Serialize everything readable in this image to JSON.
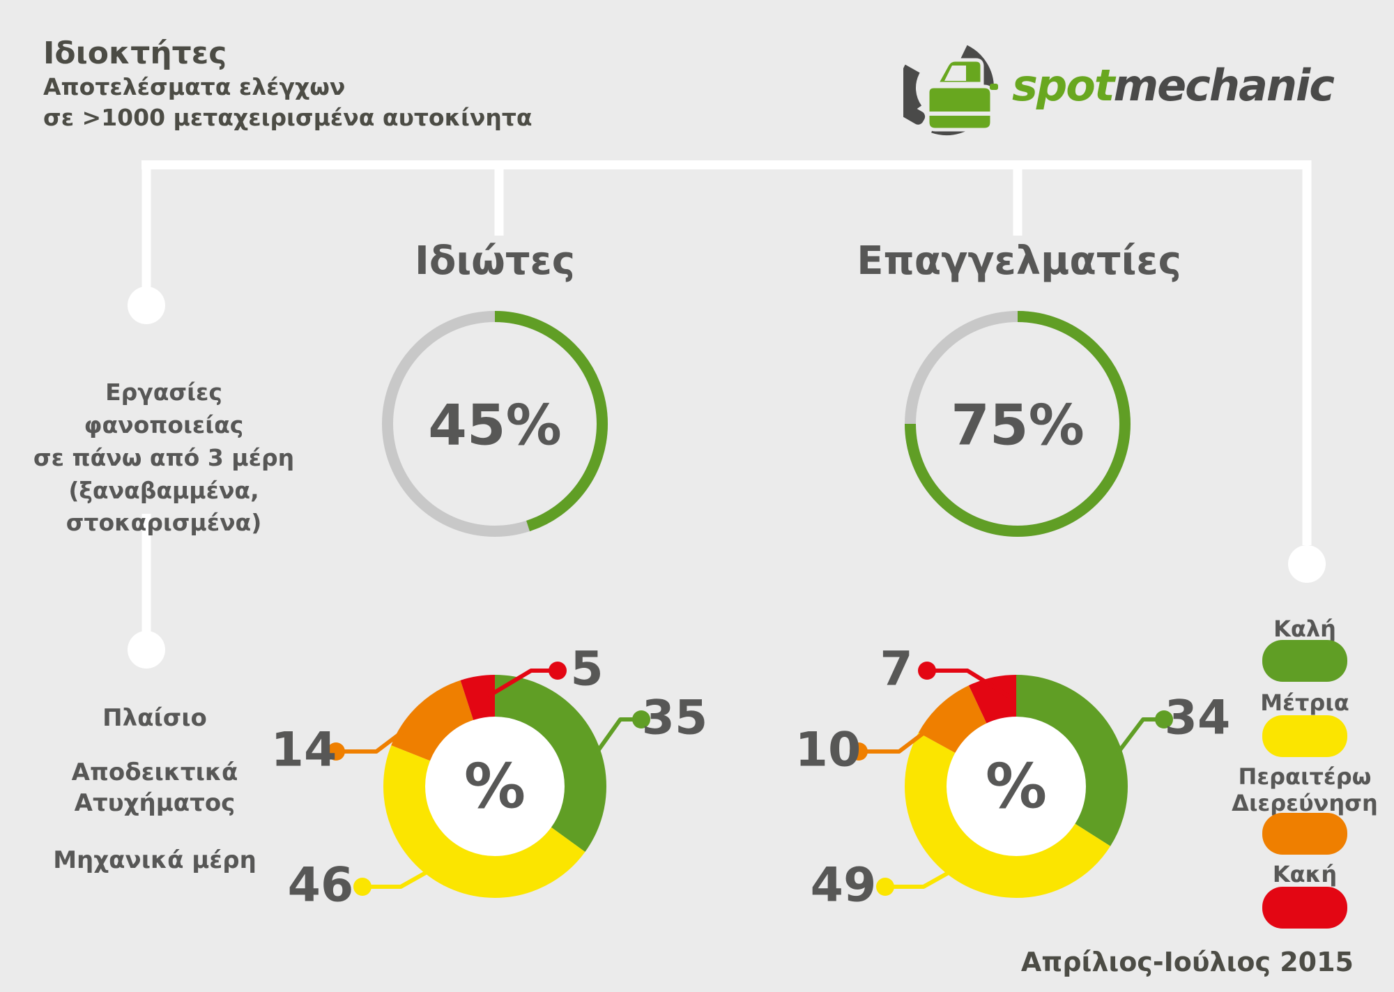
{
  "header": {
    "title": "Ιδιοκτήτες",
    "subtitle_line1": "Αποτελέσματα ελέγχων",
    "subtitle_line2": "σε >1000 μεταχειρισμένα αυτοκίνητα",
    "logo_part1": "spot",
    "logo_part2": "mechanic"
  },
  "columns": {
    "left_heading": "Ιδιώτες",
    "right_heading": "Επαγγελματίες"
  },
  "row_label": {
    "lines": [
      "Εργασίες φανοποιείας",
      "σε πάνω από 3 μέρη",
      "(ξαναβαμμένα,",
      "στοκαρισμένα)"
    ]
  },
  "bottom_labels": [
    "Πλαίσιο",
    "Αποδεικτικά Ατυχήματος",
    "Μηχανικά μέρη"
  ],
  "legend": [
    {
      "label": "Καλή",
      "color": "#609e25"
    },
    {
      "label": "Μέτρια",
      "color": "#fbe500"
    },
    {
      "label": "Περαιτέρω Διερεύνηση",
      "color": "#ef7f00"
    },
    {
      "label": "Κακή",
      "color": "#e30613"
    }
  ],
  "footer": "Απρίλιος-Ιούλιος 2015",
  "colors": {
    "background": "#ebebeb",
    "text": "#575756",
    "title_text": "#4c4c45",
    "connector_white": "#ffffff",
    "ring_track": "#c8c8c8",
    "good_green": "#609e25",
    "medium_yellow": "#fbe500",
    "investigate_orange": "#ef7f00",
    "bad_red": "#e30613",
    "logo_green": "#68a71f",
    "logo_dark": "#4a4a49"
  },
  "chart_data": [
    {
      "id": "ring-private",
      "type": "donut",
      "group": "Ιδιώτες",
      "metric": "Εργασίες φανοποιείας σε πάνω από 3 μέρη (ξαναβαμμένα, στοκαρισμένα)",
      "value": 45,
      "unit": "%",
      "center_label": "45%",
      "color": "#609e25",
      "track_color": "#c8c8c8",
      "start_angle": "top",
      "direction": "clockwise"
    },
    {
      "id": "ring-professional",
      "type": "donut",
      "group": "Επαγγελματίες",
      "metric": "Εργασίες φανοποιείας σε πάνω από 3 μέρη (ξαναβαμμένα, στοκαρισμένα)",
      "value": 75,
      "unit": "%",
      "center_label": "75%",
      "color": "#609e25",
      "track_color": "#c8c8c8",
      "start_angle": "top",
      "direction": "clockwise"
    },
    {
      "id": "donut-private",
      "type": "pie",
      "group": "Ιδιώτες",
      "unit": "%",
      "center_label": "%",
      "categories": [
        "Καλή",
        "Μέτρια",
        "Περαιτέρω Διερεύνηση",
        "Κακή"
      ],
      "values": [
        35,
        46,
        14,
        5
      ],
      "colors": [
        "#609e25",
        "#fbe500",
        "#ef7f00",
        "#e30613"
      ],
      "start_angle": "top",
      "direction": "clockwise"
    },
    {
      "id": "donut-professional",
      "type": "pie",
      "group": "Επαγγελματίες",
      "unit": "%",
      "center_label": "%",
      "categories": [
        "Καλή",
        "Μέτρια",
        "Περαιτέρω Διερεύνηση",
        "Κακή"
      ],
      "values": [
        34,
        49,
        10,
        7
      ],
      "colors": [
        "#609e25",
        "#fbe500",
        "#ef7f00",
        "#e30613"
      ],
      "start_angle": "top",
      "direction": "clockwise"
    }
  ]
}
